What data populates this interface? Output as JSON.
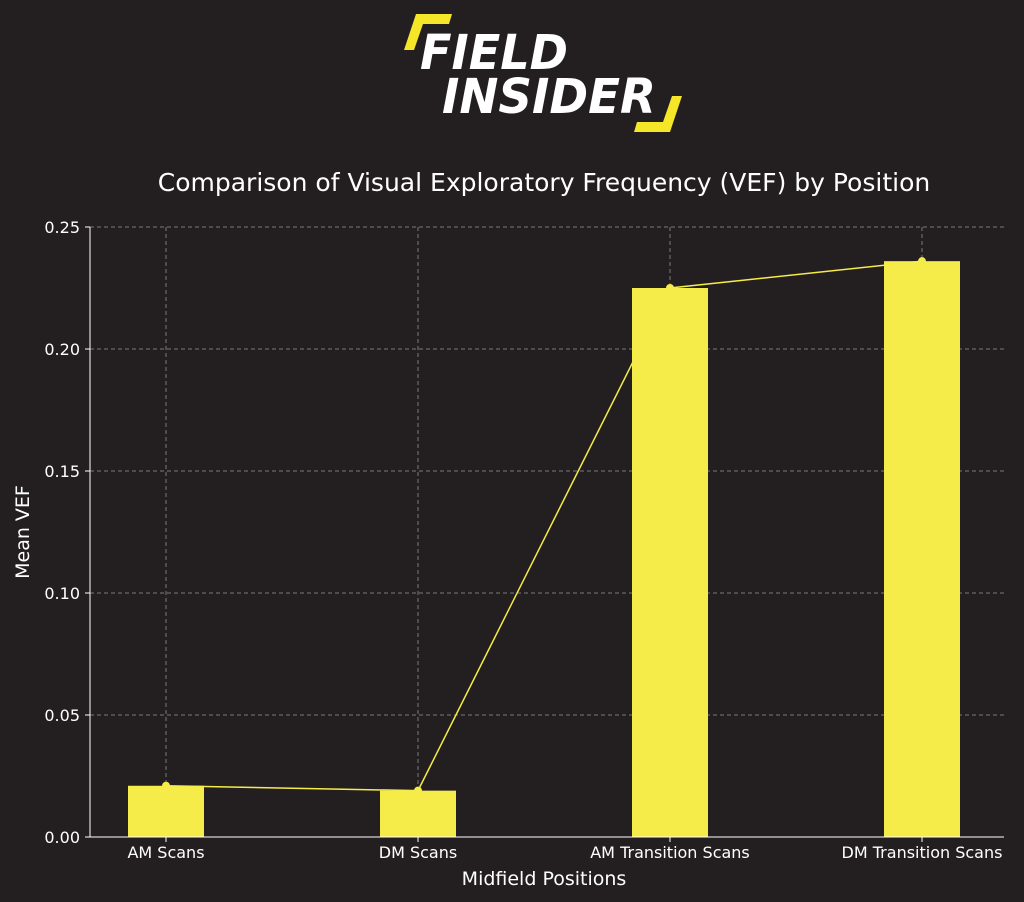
{
  "brand": {
    "line1": "FIELD",
    "line2": "INSIDER",
    "accent_color": "#f5e627"
  },
  "colors": {
    "background": "#231f20",
    "bar": "#f5ec4a",
    "line": "#f5ec4a",
    "grid": "#7a7a7a",
    "text": "#ffffff"
  },
  "chart_data": {
    "type": "bar",
    "title": "Comparison of Visual Exploratory Frequency (VEF) by Position",
    "xlabel": "Midfield Positions",
    "ylabel": "Mean VEF",
    "categories": [
      "AM Scans",
      "DM Scans",
      "AM Transition Scans",
      "DM Transition Scans"
    ],
    "values": [
      0.021,
      0.019,
      0.225,
      0.236
    ],
    "ylim": [
      0,
      0.25
    ],
    "yticks": [
      0.0,
      0.05,
      0.1,
      0.15,
      0.2,
      0.25
    ],
    "ytick_labels": [
      "0.00",
      "0.05",
      "0.10",
      "0.15",
      "0.20",
      "0.25"
    ],
    "overlay_line": true,
    "grid": true
  }
}
